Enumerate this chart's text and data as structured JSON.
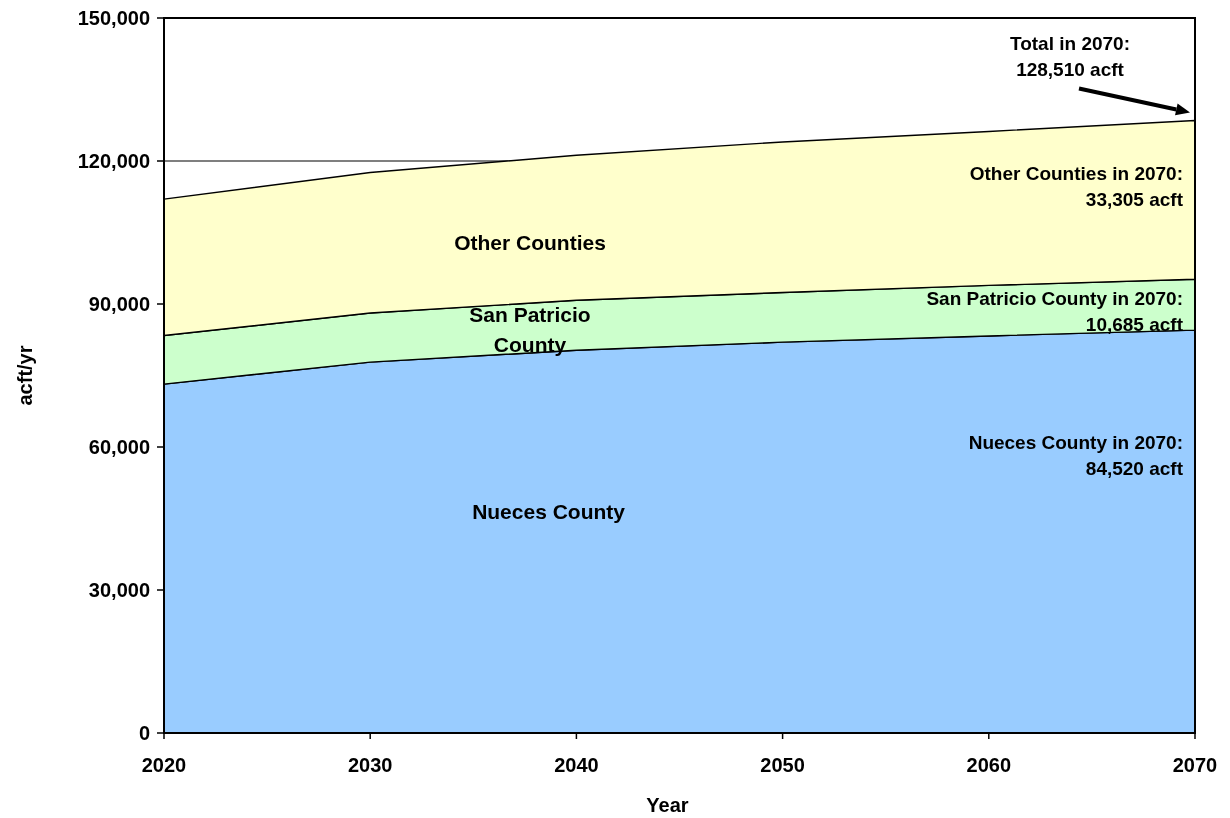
{
  "chart_data": {
    "type": "area",
    "stacked": true,
    "xlabel": "Year",
    "ylabel": "acft/yr",
    "x": [
      2020,
      2030,
      2040,
      2050,
      2060,
      2070
    ],
    "xlim": [
      2020,
      2070
    ],
    "xticks": [
      2020,
      2030,
      2040,
      2050,
      2060,
      2070
    ],
    "ylim": [
      0,
      150000
    ],
    "yticks": [
      {
        "value": 0,
        "label": "0"
      },
      {
        "value": 30000,
        "label": "30,000"
      },
      {
        "value": 60000,
        "label": "60,000"
      },
      {
        "value": 90000,
        "label": "90,000"
      },
      {
        "value": 120000,
        "label": "120,000"
      },
      {
        "value": 150000,
        "label": "150,000"
      }
    ],
    "grid": "y",
    "series": [
      {
        "name": "Nueces County",
        "color": "#99ccff",
        "values": [
          73200,
          77800,
          80300,
          82000,
          83300,
          84520
        ]
      },
      {
        "name": "San Patricio County",
        "color": "#ccffcc",
        "values": [
          10200,
          10300,
          10500,
          10400,
          10600,
          10685
        ]
      },
      {
        "name": "Other Counties",
        "color": "#ffffcc",
        "values": [
          28600,
          29500,
          30400,
          31600,
          32300,
          33305
        ]
      }
    ],
    "annotations": [
      "Total in 2070:\n128,510 acft",
      "Other Counties in 2070:\n33,305 acft",
      "San Patricio County in 2070:\n10,685 acft",
      "Nueces County in 2070:\n84,520 acft"
    ]
  }
}
